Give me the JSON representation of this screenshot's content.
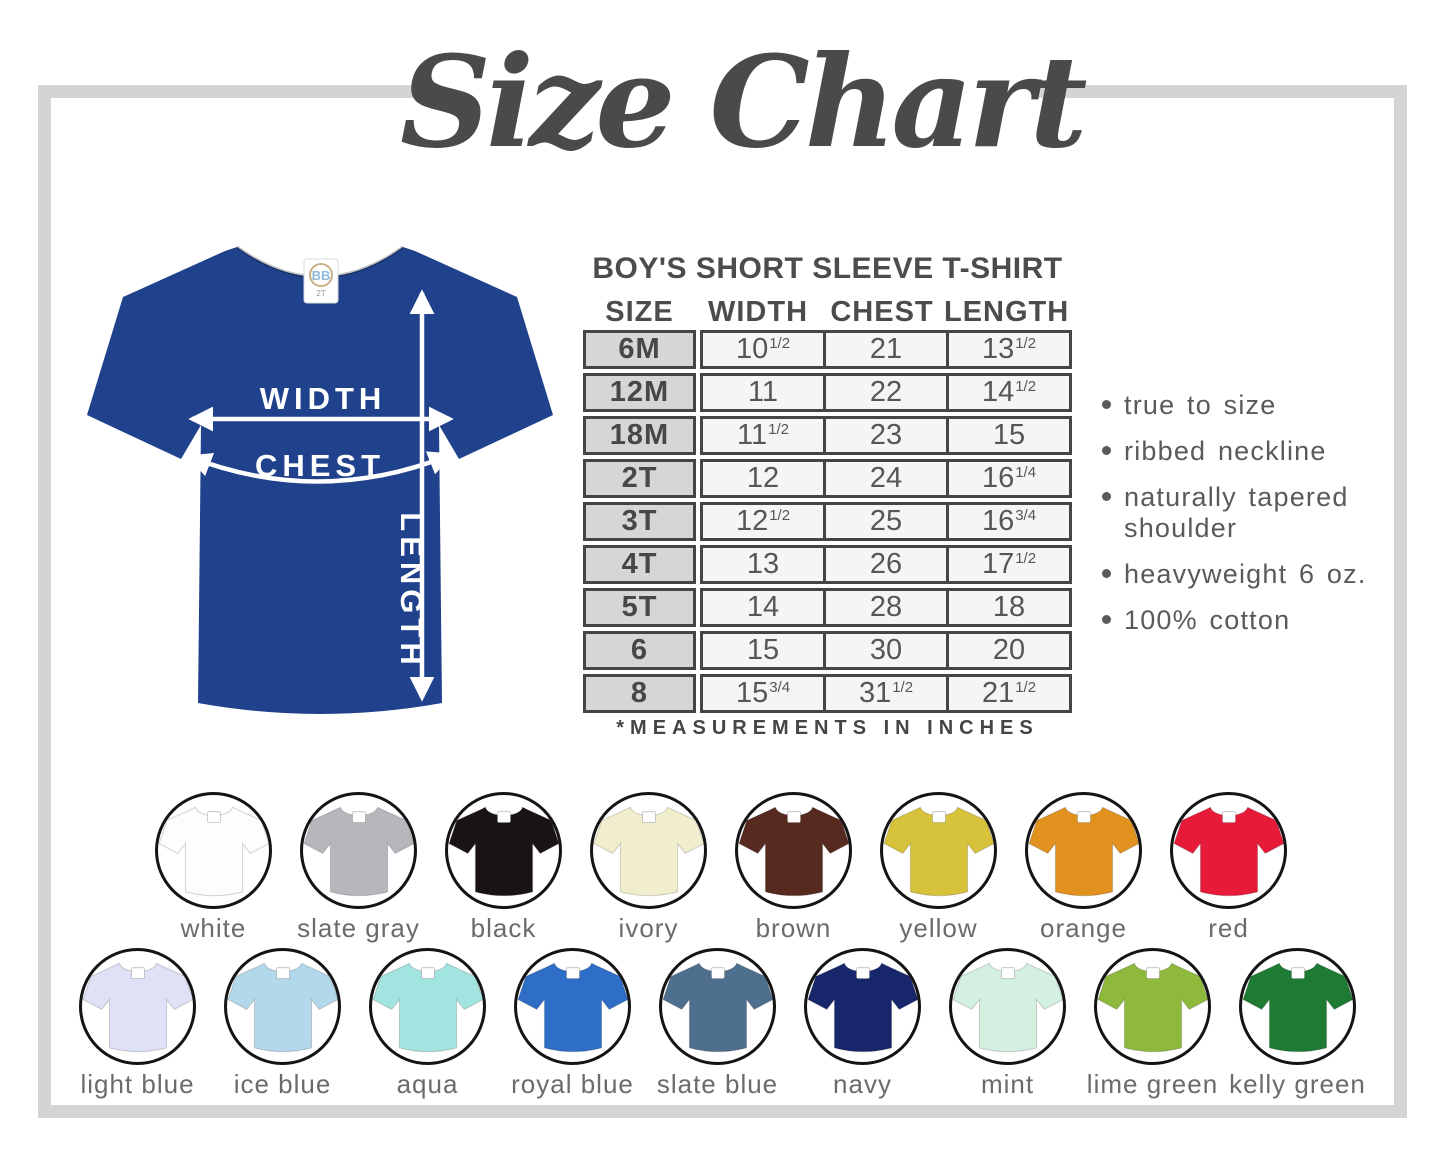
{
  "page": {
    "title": "Size Chart"
  },
  "diagram": {
    "shirt_color": "#20418c",
    "labels": {
      "width": "WIDTH",
      "chest": "CHEST",
      "length": "LENGTH"
    },
    "tag": {
      "brand": "BB",
      "size": "2T"
    }
  },
  "size_table": {
    "heading": "BOY'S SHORT SLEEVE T-SHIRT",
    "columns": [
      "SIZE",
      "WIDTH",
      "CHEST",
      "LENGTH"
    ],
    "rows": [
      {
        "size": "6M",
        "width": "10 1/2",
        "chest": "21",
        "length": "13 1/2"
      },
      {
        "size": "12M",
        "width": "11",
        "chest": "22",
        "length": "14 1/2"
      },
      {
        "size": "18M",
        "width": "11 1/2",
        "chest": "23",
        "length": "15"
      },
      {
        "size": "2T",
        "width": "12",
        "chest": "24",
        "length": "16 1/4"
      },
      {
        "size": "3T",
        "width": "12 1/2",
        "chest": "25",
        "length": "16 3/4"
      },
      {
        "size": "4T",
        "width": "13",
        "chest": "26",
        "length": "17 1/2"
      },
      {
        "size": "5T",
        "width": "14",
        "chest": "28",
        "length": "18"
      },
      {
        "size": "6",
        "width": "15",
        "chest": "30",
        "length": "20"
      },
      {
        "size": "8",
        "width": "15 3/4",
        "chest": "31 1/2",
        "length": "21 1/2"
      }
    ],
    "note": "*MEASUREMENTS IN INCHES"
  },
  "features": [
    "true to size",
    "ribbed neckline",
    "naturally tapered shoulder",
    "heavyweight 6 oz.",
    "100% cotton"
  ],
  "swatches": {
    "row1": [
      {
        "label": "white",
        "color": "#fdfdfd"
      },
      {
        "label": "slate gray",
        "color": "#b7b6bc"
      },
      {
        "label": "black",
        "color": "#1a1316"
      },
      {
        "label": "ivory",
        "color": "#f0eecd"
      },
      {
        "label": "brown",
        "color": "#572a1f"
      },
      {
        "label": "yellow",
        "color": "#d6c23b"
      },
      {
        "label": "orange",
        "color": "#e1921e"
      },
      {
        "label": "red",
        "color": "#e81a3a"
      }
    ],
    "row2": [
      {
        "label": "light blue",
        "color": "#dfe2f6"
      },
      {
        "label": "ice blue",
        "color": "#b4d8eb"
      },
      {
        "label": "aqua",
        "color": "#a2e5e0"
      },
      {
        "label": "royal blue",
        "color": "#2e6ec7"
      },
      {
        "label": "slate blue",
        "color": "#4f6f8e"
      },
      {
        "label": "navy",
        "color": "#18266b"
      },
      {
        "label": "mint",
        "color": "#d3f0e0"
      },
      {
        "label": "lime green",
        "color": "#8eb93d"
      },
      {
        "label": "kelly green",
        "color": "#1e7b33"
      }
    ]
  },
  "theme": {
    "frame_color": "#d4d4d4",
    "text_dark": "#4a4a4a",
    "text_gray": "#6b6b6b",
    "table_border": "#454545",
    "size_cell_bg": "#d6d6d6",
    "data_cell_bg": "#f5f5f5"
  }
}
